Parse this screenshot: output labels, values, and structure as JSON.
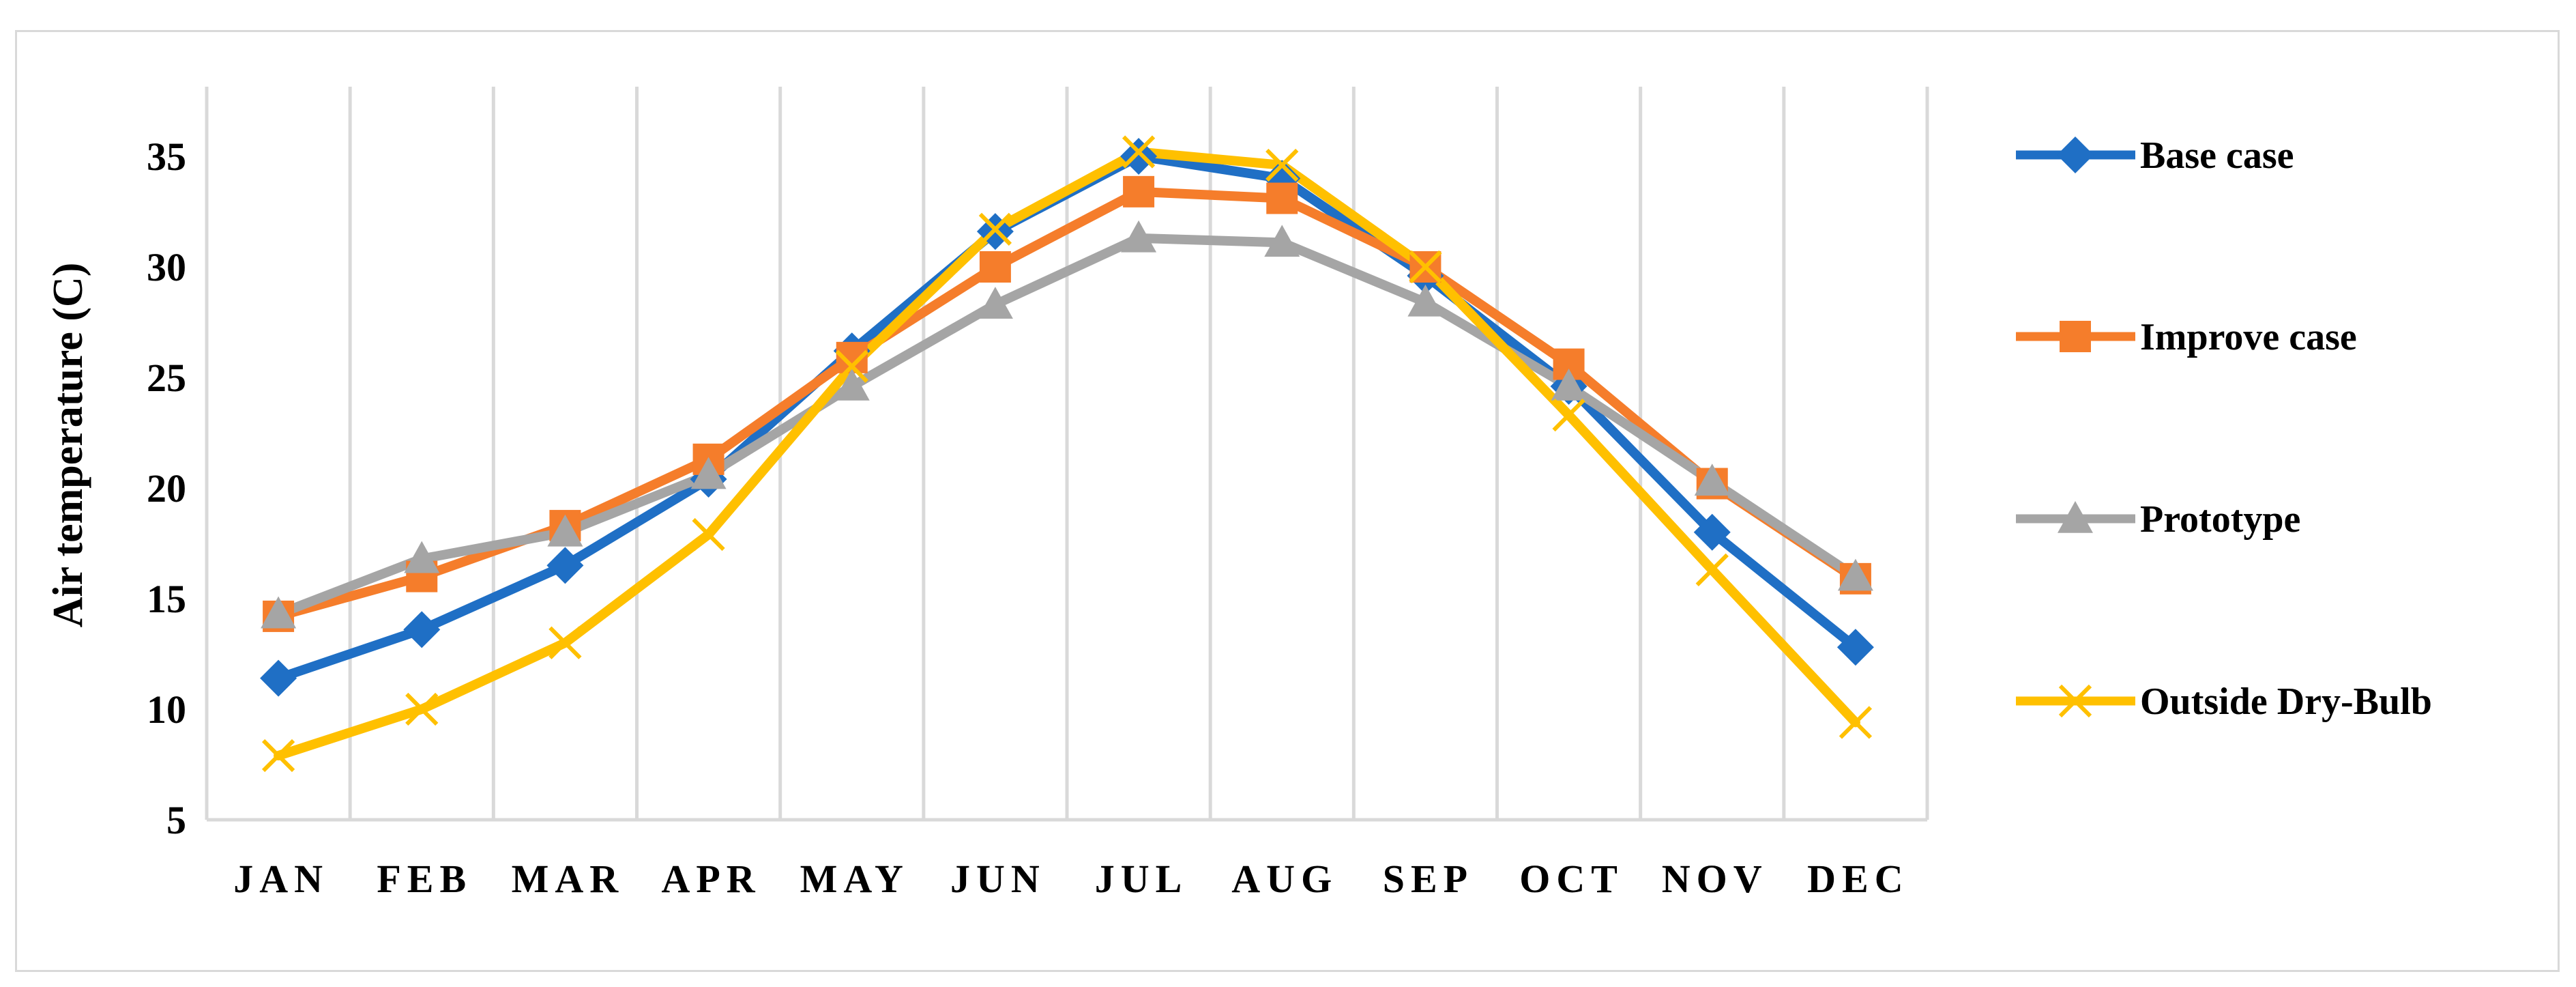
{
  "chart_data": {
    "type": "line",
    "title": "",
    "xlabel": "",
    "ylabel": "Air temperature (C)",
    "categories": [
      "JAN",
      "FEB",
      "MAR",
      "APR",
      "MAY",
      "JUN",
      "JUL",
      "AUG",
      "SEP",
      "OCT",
      "NOV",
      "DEC"
    ],
    "ylim": [
      5,
      35
    ],
    "yticks": [
      "5",
      "10",
      "15",
      "20",
      "25",
      "30",
      "35"
    ],
    "grid": "vertical",
    "legend_position": "right",
    "series": [
      {
        "name": "Base case",
        "color": "#1f6fc5",
        "marker": "diamond",
        "values": [
          11.4,
          13.6,
          16.5,
          20.4,
          26.2,
          31.6,
          35.0,
          34.0,
          29.6,
          24.6,
          18.0,
          12.8
        ]
      },
      {
        "name": "Improve case",
        "color": "#f57d2b",
        "marker": "square",
        "values": [
          14.2,
          16.0,
          18.3,
          21.3,
          25.9,
          30.0,
          33.4,
          33.1,
          30.0,
          25.6,
          20.2,
          15.9
        ]
      },
      {
        "name": "Prototype",
        "color": "#a5a5a5",
        "marker": "triangle",
        "values": [
          14.3,
          16.8,
          18.0,
          20.6,
          24.6,
          28.3,
          31.3,
          31.1,
          28.4,
          24.6,
          20.3,
          16.0
        ]
      },
      {
        "name": "Outside Dry-Bulb",
        "color": "#ffc000",
        "marker": "x",
        "values": [
          7.9,
          10.0,
          13.0,
          17.9,
          25.5,
          31.7,
          35.2,
          34.6,
          30.0,
          23.3,
          16.3,
          9.4
        ]
      }
    ]
  }
}
